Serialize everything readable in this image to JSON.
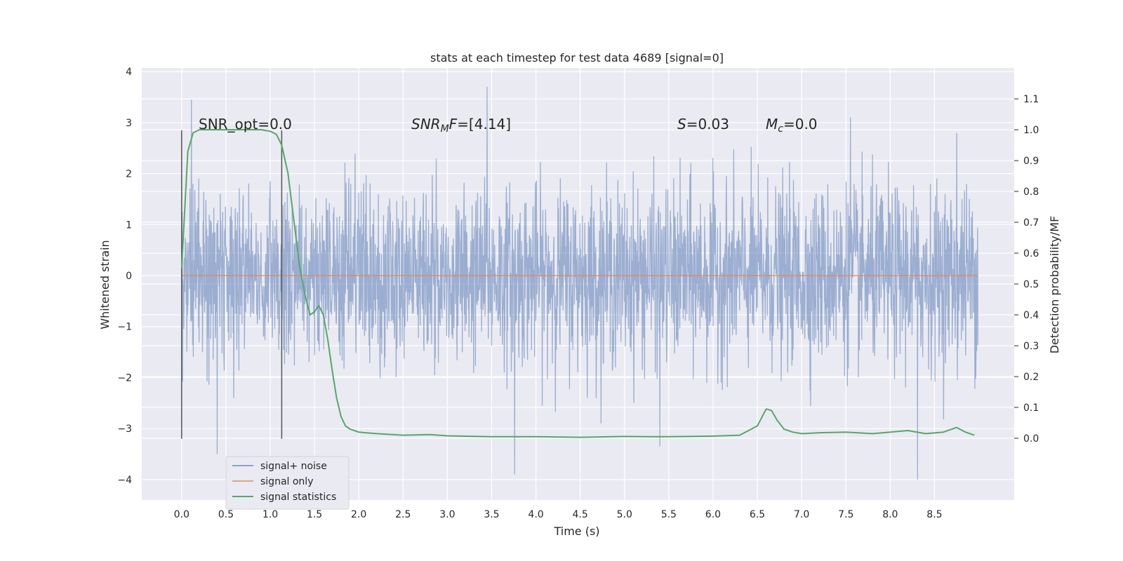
{
  "chart_data": {
    "type": "line",
    "title": "stats at each timestep for test data 4689 [signal=0]",
    "xlabel": "Time (s)",
    "ylabel": "Whitened strain",
    "y2label": "Detection probability/MF",
    "xlim": [
      -0.45,
      9.4
    ],
    "ylim": [
      -4.4,
      4.07
    ],
    "y2lim": [
      -0.2,
      1.2
    ],
    "x_ticks": [
      "0.0",
      "0.5",
      "1.0",
      "1.5",
      "2.0",
      "2.5",
      "3.0",
      "3.5",
      "4.0",
      "4.5",
      "5.0",
      "5.5",
      "6.0",
      "6.5",
      "7.0",
      "7.5",
      "8.0",
      "8.5"
    ],
    "y_ticks": [
      "−4",
      "−3",
      "−2",
      "−1",
      "0",
      "1",
      "2",
      "3",
      "4"
    ],
    "y2_ticks": [
      "0.0",
      "0.1",
      "0.2",
      "0.3",
      "0.4",
      "0.5",
      "0.6",
      "0.7",
      "0.8",
      "0.9",
      "1.0",
      "1.1"
    ],
    "grid": true,
    "legend_position": "lower-left",
    "colors": {
      "background": "#eaeaf2",
      "grid": "#ffffff",
      "noise": "#4c72b0",
      "signal": "#dd8452",
      "stats": "#55a868",
      "marker": "#555555"
    },
    "series": [
      {
        "name": "signal+ noise",
        "description": "dense whitened strain noise, approx. bounded by |1| with spikes up to ±3.7",
        "x_range": [
          0.0,
          8.99
        ],
        "typical_amplitude": 1.0,
        "spikes": [
          {
            "x": 0.11,
            "y": 3.45
          },
          {
            "x": 0.4,
            "y": -3.5
          },
          {
            "x": 3.45,
            "y": 3.7
          },
          {
            "x": 3.76,
            "y": -3.9
          },
          {
            "x": 8.31,
            "y": -4.0
          },
          {
            "x": 7.55,
            "y": 3.1
          },
          {
            "x": 5.4,
            "y": -3.35
          },
          {
            "x": 8.75,
            "y": 2.8
          }
        ]
      },
      {
        "name": "signal only",
        "x": [
          0.0,
          8.99
        ],
        "y": [
          0.0,
          0.0
        ]
      },
      {
        "name": "signal statistics",
        "axis": "right",
        "x": [
          0.0,
          0.07,
          0.13,
          0.2,
          0.3,
          0.45,
          0.6,
          0.75,
          0.9,
          1.0,
          1.07,
          1.13,
          1.2,
          1.27,
          1.33,
          1.4,
          1.45,
          1.5,
          1.55,
          1.6,
          1.65,
          1.7,
          1.75,
          1.8,
          1.85,
          1.9,
          2.0,
          2.2,
          2.5,
          2.8,
          3.0,
          3.5,
          4.0,
          4.5,
          5.0,
          5.3,
          5.5,
          6.0,
          6.3,
          6.5,
          6.6,
          6.66,
          6.72,
          6.8,
          6.9,
          7.0,
          7.2,
          7.5,
          7.8,
          8.0,
          8.2,
          8.4,
          8.6,
          8.75,
          8.85,
          8.95
        ],
        "y": [
          0.55,
          0.93,
          0.99,
          1.0,
          1.0,
          1.0,
          1.0,
          1.0,
          1.0,
          0.995,
          0.985,
          0.95,
          0.86,
          0.7,
          0.56,
          0.455,
          0.4,
          0.41,
          0.43,
          0.4,
          0.32,
          0.22,
          0.13,
          0.07,
          0.04,
          0.03,
          0.02,
          0.015,
          0.01,
          0.012,
          0.008,
          0.005,
          0.005,
          0.003,
          0.006,
          0.005,
          0.005,
          0.007,
          0.01,
          0.04,
          0.095,
          0.09,
          0.06,
          0.03,
          0.02,
          0.015,
          0.018,
          0.02,
          0.015,
          0.02,
          0.025,
          0.015,
          0.02,
          0.035,
          0.02,
          0.01
        ]
      }
    ],
    "markers": [
      {
        "x": 0.0,
        "y_range": [
          -3.2,
          2.85
        ]
      },
      {
        "x": 1.13,
        "y_range": [
          -3.2,
          2.85
        ]
      }
    ],
    "annotations": [
      {
        "text": "SNR_opt=0.0",
        "x": 0.2,
        "y": 2.9,
        "italic": false
      },
      {
        "text": "SNR_MF=[4.14]",
        "x": 2.6,
        "y": 2.9,
        "italic": true
      },
      {
        "text": "S=0.03",
        "x": 5.6,
        "y": 2.9,
        "italic": true
      },
      {
        "text": "M_c=0.0",
        "x": 6.6,
        "y": 2.9,
        "italic": true
      }
    ]
  },
  "annotation_text": {
    "snr_opt": "SNR_opt=0.0",
    "snr_mf_main": "SNR",
    "snr_mf_sub": "M",
    "snr_mf_f": "F",
    "snr_mf_val": "=[4.14]",
    "s_var": "S",
    "s_val": "=0.03",
    "mc_var": "M",
    "mc_sub": "c",
    "mc_val": "=0.0"
  }
}
